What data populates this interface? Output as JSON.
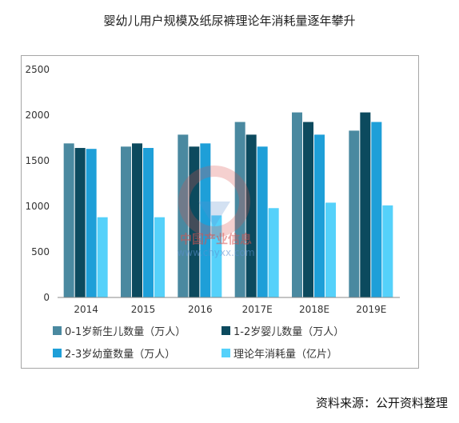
{
  "title": "婴幼儿用户规模及纸尿裤理论年消耗量逐年攀升",
  "source": "资料来源：公开资料整理",
  "watermark": {
    "text": "中国产业信息",
    "url": "www.chyxx.com"
  },
  "colors": {
    "series1": "#4a89a0",
    "series2": "#0c4a5e",
    "series3": "#1e9fd8",
    "series4": "#55d1fa",
    "axis": "#888888",
    "frame": "#a6a6a6",
    "text": "#333333"
  },
  "chart_data": {
    "type": "bar",
    "title": "婴幼儿用户规模及纸尿裤理论年消耗量逐年攀升",
    "xlabel": "",
    "ylabel": "",
    "ylim": [
      0,
      2500
    ],
    "yticks": [
      "0",
      "500",
      "1000",
      "1500",
      "2000",
      "2500"
    ],
    "categories": [
      "2014",
      "2015",
      "2016",
      "2017E",
      "2018E",
      "2019E"
    ],
    "series": [
      {
        "name": "0-1岁新生儿数量（万人）",
        "values": [
          1690,
          1655,
          1786,
          1925,
          2030,
          1830
        ]
      },
      {
        "name": "1-2岁婴儿数量（万人）",
        "values": [
          1640,
          1690,
          1655,
          1786,
          1925,
          2030
        ]
      },
      {
        "name": "2-3岁幼童数量（万人）",
        "values": [
          1630,
          1640,
          1690,
          1655,
          1786,
          1925
        ]
      },
      {
        "name": "理论年消耗量（亿片）",
        "values": [
          880,
          880,
          900,
          980,
          1040,
          1010
        ]
      }
    ],
    "legend_position": "bottom",
    "grid": false
  }
}
